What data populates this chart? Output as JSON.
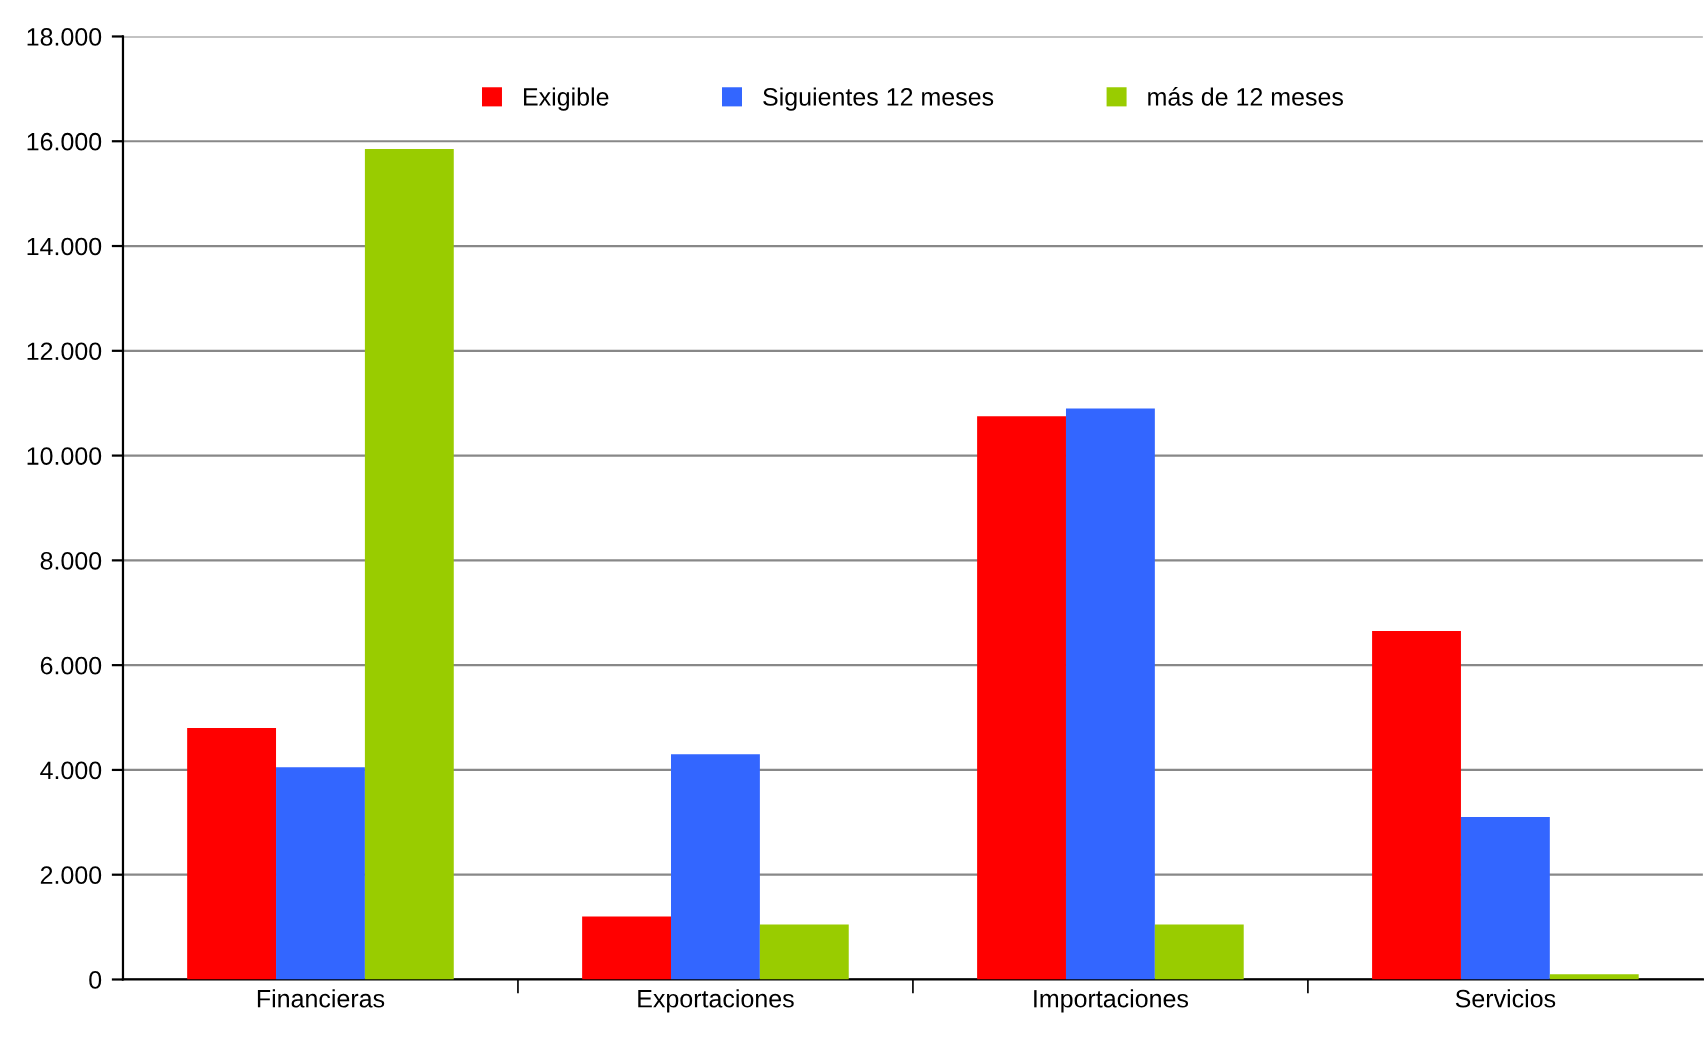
{
  "chart_data": {
    "type": "bar",
    "categories": [
      "Financieras",
      "Exportaciones",
      "Importaciones",
      "Servicios"
    ],
    "series": [
      {
        "name": "Exigible",
        "color": "#ff0000",
        "values": [
          4800,
          1200,
          10750,
          6650
        ]
      },
      {
        "name": "Siguientes 12 meses",
        "color": "#3366ff",
        "values": [
          4050,
          4300,
          10900,
          3100
        ]
      },
      {
        "name": "más de 12 meses",
        "color": "#99cc00",
        "values": [
          15850,
          1050,
          1050,
          100
        ]
      }
    ],
    "ylim": [
      0,
      18000
    ],
    "yticks": [
      {
        "value": 0,
        "label": "0"
      },
      {
        "value": 2000,
        "label": "2.000"
      },
      {
        "value": 4000,
        "label": "4.000"
      },
      {
        "value": 6000,
        "label": "6.000"
      },
      {
        "value": 8000,
        "label": "8.000"
      },
      {
        "value": 10000,
        "label": "10.000"
      },
      {
        "value": 12000,
        "label": "12.000"
      },
      {
        "value": 14000,
        "label": "14.000"
      },
      {
        "value": 16000,
        "label": "16.000"
      },
      {
        "value": 18000,
        "label": "18.000"
      }
    ],
    "grid": "y",
    "legend": "top"
  }
}
